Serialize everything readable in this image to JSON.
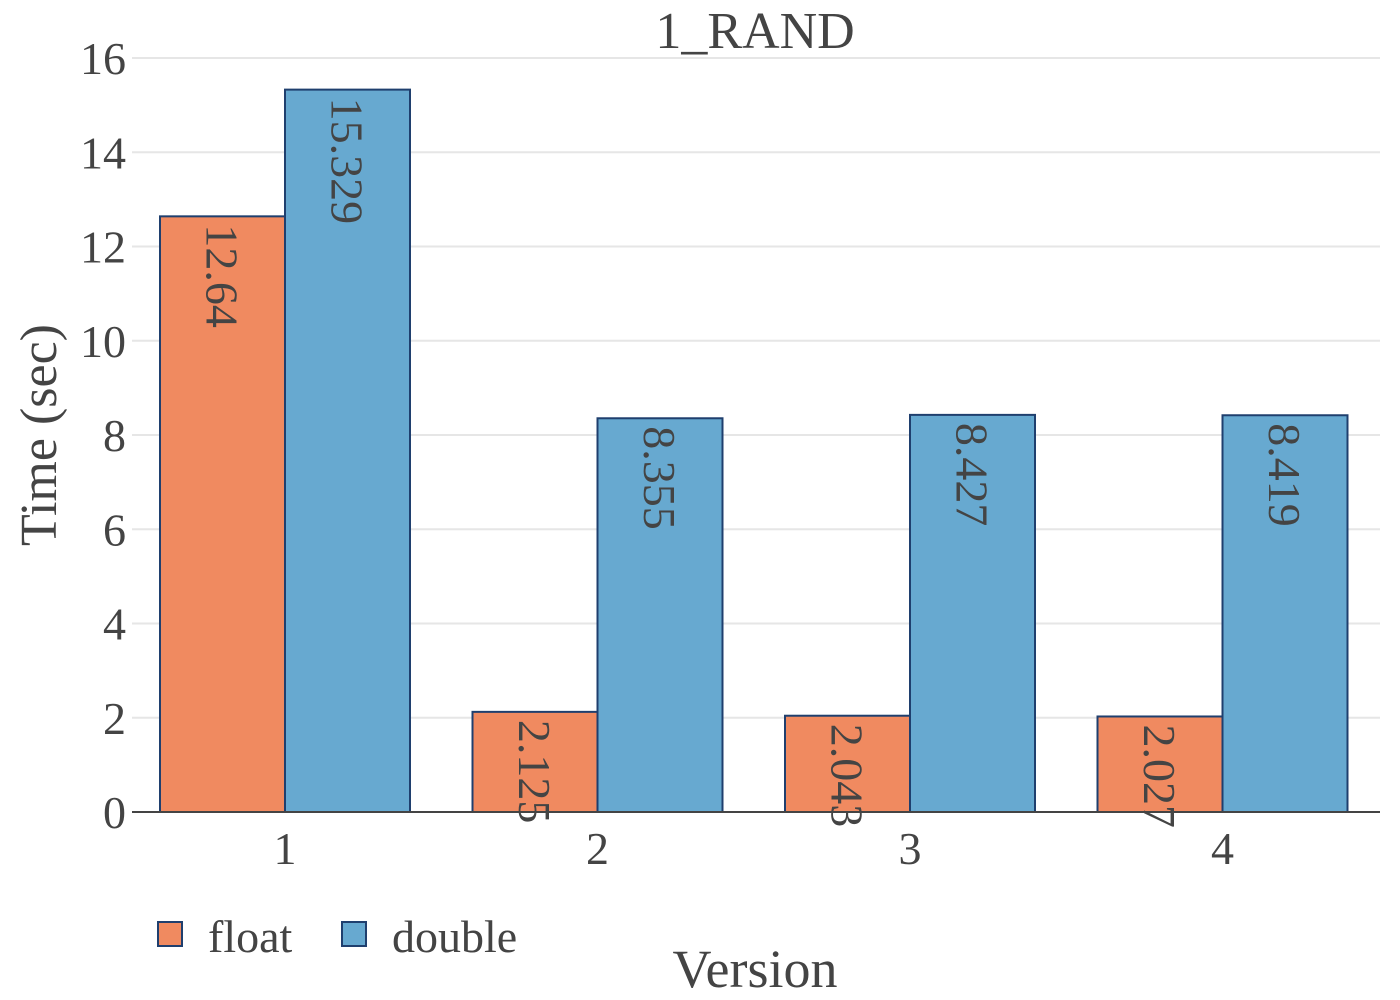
{
  "chart_data": {
    "type": "bar",
    "title": "1_RAND",
    "xlabel": "Version",
    "ylabel": "Time (sec)",
    "categories": [
      "1",
      "2",
      "3",
      "4"
    ],
    "ylim": [
      0,
      16
    ],
    "yticks": [
      0,
      2,
      4,
      6,
      8,
      10,
      12,
      14,
      16
    ],
    "grid": true,
    "legend_position": "bottom-left",
    "series": [
      {
        "name": "float",
        "color": "#F08A60",
        "values": [
          12.64,
          2.125,
          2.043,
          2.027
        ]
      },
      {
        "name": "double",
        "color": "#67A9D0",
        "values": [
          15.329,
          8.355,
          8.427,
          8.419
        ]
      }
    ],
    "data_labels": [
      [
        "12.64",
        "2.125",
        "2.043",
        "2.027"
      ],
      [
        "15.329",
        "8.355",
        "8.427",
        "8.419"
      ]
    ]
  }
}
